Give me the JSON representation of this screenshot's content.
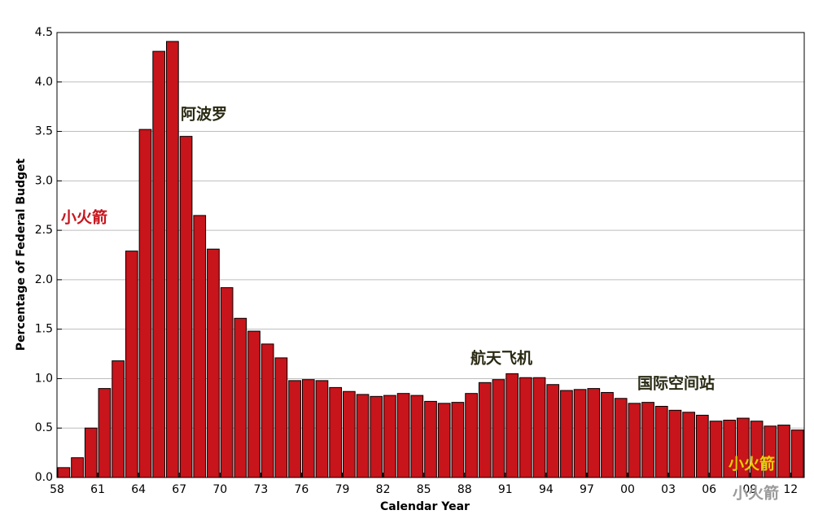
{
  "chart_data": {
    "type": "bar",
    "x_label": "Calendar Year",
    "y_label": "Percentage of Federal Budget",
    "categories": [
      "58",
      null,
      null,
      "61",
      null,
      null,
      "64",
      null,
      null,
      "67",
      null,
      null,
      "70",
      null,
      null,
      "73",
      null,
      null,
      "76",
      null,
      null,
      "79",
      null,
      null,
      "82",
      null,
      null,
      "85",
      null,
      null,
      "88",
      null,
      null,
      "91",
      null,
      null,
      "94",
      null,
      null,
      "97",
      null,
      null,
      "00",
      null,
      null,
      "03",
      null,
      null,
      "06",
      null,
      null,
      "09",
      null,
      null,
      "12"
    ],
    "values": [
      0.1,
      0.2,
      0.5,
      0.9,
      1.18,
      2.29,
      3.52,
      4.31,
      4.41,
      3.45,
      2.65,
      2.31,
      1.92,
      1.61,
      1.48,
      1.35,
      1.21,
      0.98,
      0.99,
      0.98,
      0.91,
      0.87,
      0.84,
      0.82,
      0.83,
      0.85,
      0.83,
      0.77,
      0.75,
      0.76,
      0.85,
      0.96,
      0.99,
      1.05,
      1.01,
      1.01,
      0.94,
      0.88,
      0.89,
      0.9,
      0.86,
      0.8,
      0.75,
      0.76,
      0.72,
      0.68,
      0.66,
      0.63,
      0.57,
      0.58,
      0.6,
      0.57,
      0.52,
      0.53,
      0.48
    ],
    "color": "#c8141b",
    "ylim": [
      0,
      4.5
    ],
    "yticks": [
      {
        "value": 0,
        "label": "0.0"
      },
      0.5,
      {
        "value": 1,
        "label": "1.0"
      },
      1.5,
      {
        "value": 2,
        "label": "2.0"
      },
      2.5,
      {
        "value": 3,
        "label": "3.0"
      },
      3.5,
      {
        "value": 4,
        "label": "4.0"
      },
      4.5
    ],
    "grid": true,
    "annotations": [
      {
        "text": "阿波罗",
        "color": "#2a2a14"
      },
      {
        "text": "小火箭",
        "color": "#c8141b"
      },
      {
        "text": "航天飞机",
        "color": "#2a2a14"
      },
      {
        "text": "国际空间站",
        "color": "#2a2a14"
      },
      {
        "text": "小火箭",
        "color": "#e8d000"
      },
      {
        "text": "小火箭",
        "color": "#9a9a9a"
      }
    ]
  }
}
